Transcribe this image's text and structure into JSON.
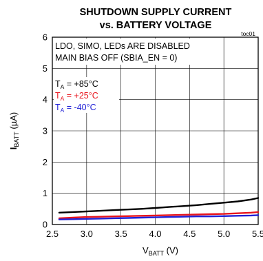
{
  "chart_data": {
    "type": "line",
    "title_line1": "SHUTDOWN SUPPLY CURRENT",
    "title_line2": "vs. BATTERY VOLTAGE",
    "tag": "toc01",
    "xlabel_main": "V",
    "xlabel_sub": "BATT",
    "xlabel_unit": " (V)",
    "ylabel_main": "I",
    "ylabel_sub": "BATT",
    "ylabel_unit": " (µA)",
    "xlim": [
      2.5,
      5.5
    ],
    "ylim": [
      0,
      6
    ],
    "xticks": [
      "2.5",
      "3.0",
      "3.5",
      "4.0",
      "4.5",
      "5.0",
      "5.5"
    ],
    "yticks": [
      "0",
      "1",
      "2",
      "3",
      "4",
      "5",
      "6"
    ],
    "annotations": [
      "LDO, SIMO, LEDs ARE DISABLED",
      "MAIN BIAS OFF (SBIA_EN = 0)"
    ],
    "legend": [
      {
        "prefix": "T",
        "sub": "A",
        "suffix": " = +85°C",
        "color": "#000000"
      },
      {
        "prefix": "T",
        "sub": "A",
        "suffix": " = +25°C",
        "color": "#e8141c"
      },
      {
        "prefix": "T",
        "sub": "A",
        "suffix": " = -40°C",
        "color": "#1f1fd6"
      }
    ],
    "series": [
      {
        "color": "#000000",
        "x": [
          2.6,
          2.8,
          3.0,
          3.2,
          3.4,
          3.6,
          3.8,
          4.0,
          4.2,
          4.4,
          4.6,
          4.8,
          5.0,
          5.2,
          5.4,
          5.5
        ],
        "y": [
          0.38,
          0.4,
          0.42,
          0.44,
          0.46,
          0.48,
          0.5,
          0.53,
          0.56,
          0.59,
          0.62,
          0.66,
          0.7,
          0.74,
          0.8,
          0.85
        ]
      },
      {
        "color": "#e8141c",
        "x": [
          2.6,
          2.8,
          3.0,
          3.2,
          3.4,
          3.6,
          3.8,
          4.0,
          4.2,
          4.4,
          4.6,
          4.8,
          5.0,
          5.2,
          5.4,
          5.5
        ],
        "y": [
          0.2,
          0.22,
          0.24,
          0.25,
          0.26,
          0.27,
          0.28,
          0.29,
          0.3,
          0.31,
          0.32,
          0.33,
          0.34,
          0.36,
          0.38,
          0.4
        ]
      },
      {
        "color": "#1f1fd6",
        "x": [
          2.6,
          2.8,
          3.0,
          3.2,
          3.4,
          3.6,
          3.8,
          4.0,
          4.2,
          4.4,
          4.6,
          4.8,
          5.0,
          5.2,
          5.4,
          5.5
        ],
        "y": [
          0.16,
          0.17,
          0.18,
          0.19,
          0.2,
          0.21,
          0.22,
          0.23,
          0.24,
          0.25,
          0.26,
          0.26,
          0.27,
          0.28,
          0.29,
          0.3
        ]
      }
    ]
  }
}
